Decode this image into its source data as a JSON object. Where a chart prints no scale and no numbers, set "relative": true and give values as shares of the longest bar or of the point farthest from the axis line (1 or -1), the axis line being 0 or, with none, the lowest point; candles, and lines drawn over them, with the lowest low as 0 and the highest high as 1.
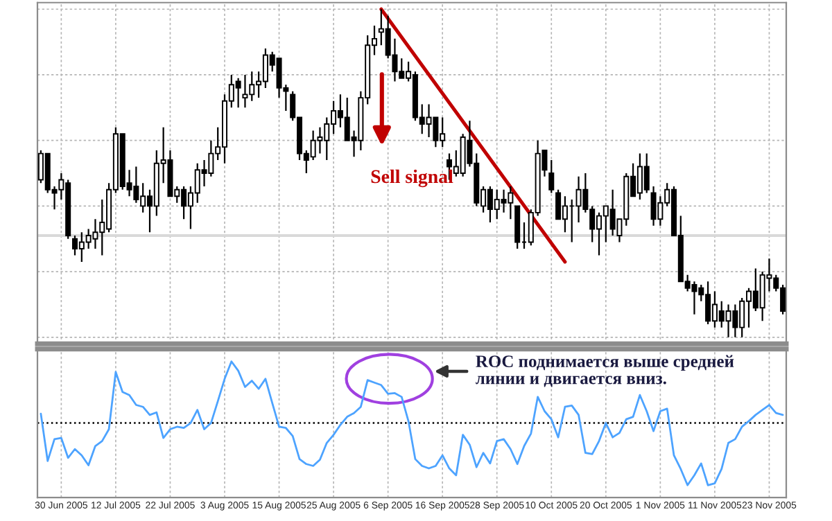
{
  "chart_data": [
    {
      "type": "candlestick",
      "relative": true,
      "grid": true,
      "tick_labels": false,
      "categories": [
        null,
        null,
        null,
        null,
        null,
        null,
        null,
        null,
        null,
        null,
        null,
        null,
        null,
        null,
        null,
        null,
        null,
        null,
        null,
        null,
        null,
        null,
        null,
        null,
        null,
        null,
        null,
        null,
        null,
        null,
        null,
        null,
        null,
        null,
        null,
        null,
        null,
        null,
        null,
        null,
        null,
        null,
        null,
        null,
        null,
        null,
        null,
        null,
        null,
        null,
        null,
        null,
        null,
        null,
        null,
        null,
        null,
        null,
        null,
        null,
        null,
        null,
        null,
        null,
        null,
        null,
        null,
        null,
        null,
        null,
        null,
        null,
        null,
        null,
        null,
        null,
        null,
        null,
        null,
        null,
        null,
        null,
        null,
        null,
        null,
        null,
        null,
        null,
        null,
        null,
        null,
        null,
        null,
        null,
        null,
        null,
        null,
        null,
        null,
        null,
        null,
        null,
        null,
        null,
        null,
        null,
        null,
        null,
        null,
        null
      ],
      "ohlc": [
        [
          0.48,
          0.57,
          0.47,
          0.56
        ],
        [
          0.56,
          0.56,
          0.44,
          0.45
        ],
        [
          0.45,
          0.46,
          0.39,
          0.44
        ],
        [
          0.45,
          0.5,
          0.42,
          0.48
        ],
        [
          0.47,
          0.48,
          0.3,
          0.31
        ],
        [
          0.3,
          0.31,
          0.25,
          0.27
        ],
        [
          0.27,
          0.32,
          0.23,
          0.29
        ],
        [
          0.29,
          0.33,
          0.27,
          0.31
        ],
        [
          0.3,
          0.36,
          0.27,
          0.32
        ],
        [
          0.32,
          0.42,
          0.25,
          0.35
        ],
        [
          0.33,
          0.47,
          0.32,
          0.45
        ],
        [
          0.45,
          0.64,
          0.44,
          0.62
        ],
        [
          0.62,
          0.62,
          0.45,
          0.46
        ],
        [
          0.47,
          0.51,
          0.43,
          0.45
        ],
        [
          0.46,
          0.52,
          0.41,
          0.42
        ],
        [
          0.4,
          0.47,
          0.38,
          0.43
        ],
        [
          0.43,
          0.45,
          0.32,
          0.4
        ],
        [
          0.4,
          0.57,
          0.37,
          0.53
        ],
        [
          0.53,
          0.64,
          0.47,
          0.54
        ],
        [
          0.54,
          0.57,
          0.43,
          0.43
        ],
        [
          0.43,
          0.46,
          0.41,
          0.45
        ],
        [
          0.45,
          0.46,
          0.36,
          0.4
        ],
        [
          0.4,
          0.46,
          0.33,
          0.44
        ],
        [
          0.44,
          0.53,
          0.41,
          0.51
        ],
        [
          0.51,
          0.54,
          0.46,
          0.5
        ],
        [
          0.5,
          0.6,
          0.49,
          0.56
        ],
        [
          0.56,
          0.64,
          0.54,
          0.58
        ],
        [
          0.58,
          0.74,
          0.53,
          0.72
        ],
        [
          0.72,
          0.8,
          0.7,
          0.77
        ],
        [
          0.78,
          0.79,
          0.7,
          0.76
        ],
        [
          0.73,
          0.8,
          0.7,
          0.74
        ],
        [
          0.74,
          0.81,
          0.72,
          0.77
        ],
        [
          0.77,
          0.81,
          0.73,
          0.78
        ],
        [
          0.78,
          0.88,
          0.76,
          0.86
        ],
        [
          0.86,
          0.87,
          0.81,
          0.83
        ],
        [
          0.85,
          0.85,
          0.73,
          0.76
        ],
        [
          0.76,
          0.77,
          0.69,
          0.75
        ],
        [
          0.74,
          0.75,
          0.66,
          0.67
        ],
        [
          0.67,
          0.67,
          0.54,
          0.56
        ],
        [
          0.56,
          0.57,
          0.5,
          0.54
        ],
        [
          0.55,
          0.63,
          0.54,
          0.6
        ],
        [
          0.6,
          0.64,
          0.56,
          0.61
        ],
        [
          0.6,
          0.67,
          0.54,
          0.65
        ],
        [
          0.65,
          0.72,
          0.62,
          0.69
        ],
        [
          0.69,
          0.74,
          0.64,
          0.67
        ],
        [
          0.67,
          0.73,
          0.6,
          0.6
        ],
        [
          0.61,
          0.63,
          0.55,
          0.6
        ],
        [
          0.6,
          0.75,
          0.57,
          0.73
        ],
        [
          0.73,
          0.92,
          0.71,
          0.89
        ],
        [
          0.89,
          0.95,
          0.86,
          0.91
        ],
        [
          0.93,
          1.0,
          0.89,
          0.94
        ],
        [
          0.94,
          0.98,
          0.85,
          0.86
        ],
        [
          0.86,
          0.91,
          0.78,
          0.81
        ],
        [
          0.81,
          0.85,
          0.79,
          0.79
        ],
        [
          0.79,
          0.84,
          0.78,
          0.81
        ],
        [
          0.8,
          0.81,
          0.66,
          0.67
        ],
        [
          0.67,
          0.71,
          0.62,
          0.65
        ],
        [
          0.65,
          0.71,
          0.61,
          0.67
        ],
        [
          0.67,
          0.67,
          0.58,
          0.6
        ],
        [
          0.6,
          0.67,
          0.58,
          0.62
        ],
        [
          0.54,
          0.56,
          0.48,
          0.52
        ],
        [
          0.5,
          0.57,
          0.49,
          0.52
        ],
        [
          0.5,
          0.62,
          0.49,
          0.61
        ],
        [
          0.6,
          0.66,
          0.52,
          0.53
        ],
        [
          0.53,
          0.56,
          0.4,
          0.41
        ],
        [
          0.4,
          0.46,
          0.38,
          0.45
        ],
        [
          0.45,
          0.46,
          0.35,
          0.39
        ],
        [
          0.39,
          0.45,
          0.36,
          0.42
        ],
        [
          0.42,
          0.45,
          0.38,
          0.41
        ],
        [
          0.41,
          0.46,
          0.36,
          0.44
        ],
        [
          0.4,
          0.4,
          0.27,
          0.29
        ],
        [
          0.29,
          0.35,
          0.27,
          0.29
        ],
        [
          0.29,
          0.39,
          0.28,
          0.38
        ],
        [
          0.38,
          0.6,
          0.37,
          0.56
        ],
        [
          0.57,
          0.57,
          0.49,
          0.51
        ],
        [
          0.5,
          0.54,
          0.44,
          0.45
        ],
        [
          0.44,
          0.45,
          0.36,
          0.36
        ],
        [
          0.36,
          0.43,
          0.32,
          0.4
        ],
        [
          0.4,
          0.42,
          0.29,
          0.4
        ],
        [
          0.4,
          0.49,
          0.35,
          0.45
        ],
        [
          0.45,
          0.5,
          0.38,
          0.39
        ],
        [
          0.39,
          0.4,
          0.29,
          0.33
        ],
        [
          0.33,
          0.38,
          0.25,
          0.37
        ],
        [
          0.37,
          0.4,
          0.29,
          0.4
        ],
        [
          0.39,
          0.45,
          0.31,
          0.33
        ],
        [
          0.31,
          0.36,
          0.29,
          0.36
        ],
        [
          0.36,
          0.5,
          0.34,
          0.49
        ],
        [
          0.49,
          0.53,
          0.43,
          0.43
        ],
        [
          0.44,
          0.56,
          0.42,
          0.52
        ],
        [
          0.52,
          0.56,
          0.44,
          0.45
        ],
        [
          0.44,
          0.46,
          0.34,
          0.36
        ],
        [
          0.36,
          0.43,
          0.34,
          0.41
        ],
        [
          0.41,
          0.47,
          0.4,
          0.45
        ],
        [
          0.45,
          0.46,
          0.31,
          0.31
        ],
        [
          0.31,
          0.37,
          0.17,
          0.17
        ],
        [
          0.17,
          0.19,
          0.14,
          0.15
        ],
        [
          0.16,
          0.17,
          0.07,
          0.14
        ],
        [
          0.15,
          0.16,
          0.11,
          0.13
        ],
        [
          0.13,
          0.17,
          0.04,
          0.05
        ],
        [
          0.05,
          0.14,
          0.03,
          0.1
        ],
        [
          0.08,
          0.11,
          0.03,
          0.05
        ],
        [
          0.05,
          0.1,
          0.0,
          0.08
        ],
        [
          0.08,
          0.1,
          0.0,
          0.03
        ],
        [
          0.03,
          0.12,
          0.0,
          0.11
        ],
        [
          0.11,
          0.15,
          0.03,
          0.14
        ],
        [
          0.14,
          0.21,
          0.08,
          0.09
        ],
        [
          0.09,
          0.2,
          0.05,
          0.19
        ],
        [
          0.18,
          0.24,
          0.14,
          0.19
        ],
        [
          0.18,
          0.19,
          0.14,
          0.15
        ],
        [
          0.15,
          0.16,
          0.07,
          0.08
        ]
      ],
      "series": [
        {
          "type": "line",
          "color": "#c00000",
          "values": [
            null,
            null,
            null,
            null,
            null,
            null,
            null,
            null,
            null,
            null,
            null,
            null,
            null,
            null,
            null,
            null,
            null,
            null,
            null,
            null,
            null,
            null,
            null,
            null,
            null,
            null,
            null,
            null,
            null,
            null,
            null,
            null,
            null,
            null,
            null,
            null,
            null,
            null,
            null,
            null,
            null,
            null,
            null,
            null,
            null,
            null,
            null,
            null,
            null,
            null,
            1.0,
            null,
            null,
            null,
            null,
            null,
            null,
            null,
            null,
            null,
            null,
            null,
            null,
            null,
            null,
            null,
            null,
            null,
            null,
            null,
            null,
            null,
            null,
            null,
            null,
            null,
            null,
            0.23,
            null,
            null,
            null,
            null,
            null,
            null,
            null,
            null,
            null,
            null,
            null,
            null,
            null,
            null,
            null,
            null,
            null,
            null,
            null,
            null,
            null,
            null,
            null,
            null,
            null,
            null,
            null,
            null,
            null,
            null,
            null,
            null
          ]
        }
      ],
      "ref_lines": [
        {
          "axis": "y",
          "value": 0.31,
          "color": "#d9d9d9"
        }
      ],
      "annotations": [
        "Sell signal"
      ]
    },
    {
      "type": "line",
      "relative": true,
      "grid": "x",
      "tick_labels": "x",
      "categories": [
        null,
        null,
        null,
        "30 Jun 2005",
        null,
        null,
        null,
        null,
        null,
        null,
        null,
        "12 Jul 2005",
        null,
        null,
        null,
        null,
        null,
        null,
        null,
        "22 Jul 2005",
        null,
        null,
        null,
        null,
        null,
        null,
        null,
        "3 Aug 2005",
        null,
        null,
        null,
        null,
        null,
        null,
        null,
        "15 Aug 2005",
        null,
        null,
        null,
        null,
        null,
        null,
        null,
        "25 Aug 2005",
        null,
        null,
        null,
        null,
        null,
        null,
        null,
        "6 Sep 2005",
        null,
        null,
        null,
        null,
        null,
        null,
        null,
        "16 Sep 2005",
        null,
        null,
        null,
        null,
        null,
        null,
        null,
        "28 Sep 2005",
        null,
        null,
        null,
        null,
        null,
        null,
        null,
        "10 Oct 2005",
        null,
        null,
        null,
        null,
        null,
        null,
        null,
        "20 Oct 2005",
        null,
        null,
        null,
        null,
        null,
        null,
        null,
        "1 Nov 2005",
        null,
        null,
        null,
        null,
        null,
        null,
        null,
        "11 Nov 2005",
        null,
        null,
        null,
        null,
        null,
        null,
        null,
        "23 Nov 2005",
        null,
        null
      ],
      "series": [
        {
          "color": "#4da3ff",
          "values": [
            0.15,
            -0.61,
            -0.26,
            -0.24,
            -0.56,
            -0.42,
            -0.52,
            -0.68,
            -0.37,
            -0.29,
            -0.1,
            0.82,
            0.5,
            0.45,
            0.29,
            0.26,
            0.13,
            0.17,
            -0.24,
            -0.1,
            -0.06,
            -0.08,
            0.0,
            0.21,
            -0.1,
            0.0,
            0.35,
            0.71,
            0.99,
            0.84,
            0.58,
            0.68,
            0.55,
            0.71,
            0.32,
            -0.06,
            -0.08,
            -0.21,
            -0.58,
            -0.66,
            -0.69,
            -0.59,
            -0.32,
            -0.19,
            -0.03,
            0.1,
            0.16,
            0.26,
            0.69,
            0.65,
            0.61,
            0.47,
            0.48,
            0.42,
            0.03,
            -0.58,
            -0.69,
            -0.73,
            -0.69,
            -0.52,
            -0.73,
            -0.84,
            -0.19,
            -0.35,
            -0.71,
            -0.48,
            -0.65,
            -0.29,
            -0.26,
            -0.42,
            -0.66,
            -0.37,
            -0.17,
            0.42,
            0.19,
            0.06,
            -0.23,
            0.26,
            0.28,
            0.13,
            -0.48,
            -0.5,
            -0.29,
            0.0,
            -0.23,
            -0.16,
            0.06,
            0.1,
            0.45,
            0.19,
            -0.13,
            0.19,
            0.23,
            -0.52,
            -0.74,
            -1.0,
            -0.84,
            -0.65,
            -1.0,
            -0.97,
            -0.74,
            -0.32,
            -0.26,
            -0.06,
            0.03,
            0.13,
            0.21,
            0.29,
            0.16,
            0.13
          ]
        }
      ],
      "ref_lines": [
        {
          "axis": "y",
          "value": 0,
          "color": "#000000",
          "line_style": "dotted"
        }
      ],
      "annotations": [
        "ROC поднимается выше средней\nлинии и двигается вниз."
      ]
    }
  ]
}
